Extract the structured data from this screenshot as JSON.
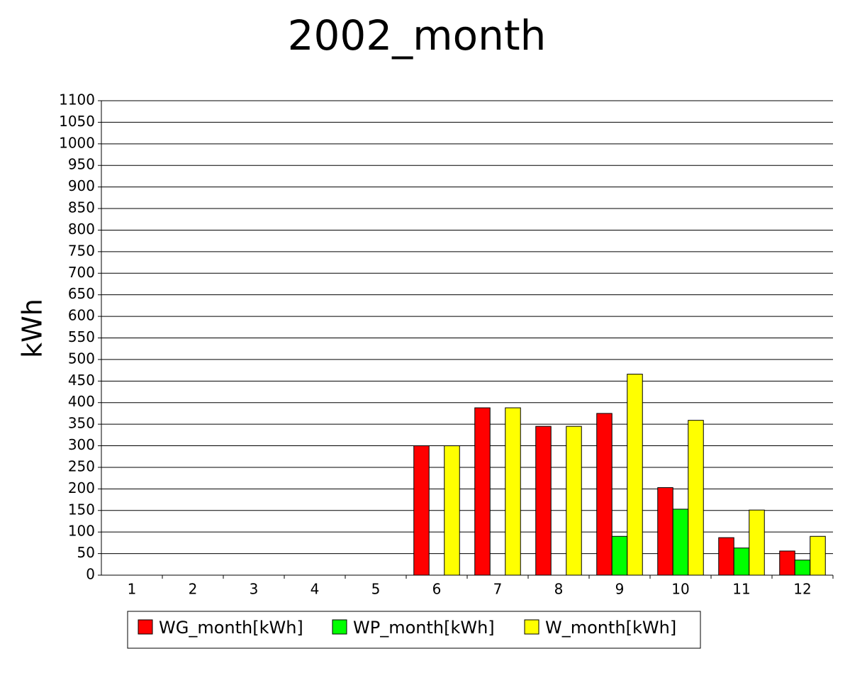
{
  "chart_data": {
    "type": "bar",
    "title": "2002_month",
    "y_label": "kWh",
    "categories": [
      "1",
      "2",
      "3",
      "4",
      "5",
      "6",
      "7",
      "8",
      "9",
      "10",
      "11",
      "12"
    ],
    "series": [
      {
        "name": "WG_month[kWh]",
        "color": "#ff0000",
        "values": [
          0,
          0,
          0,
          0,
          0,
          300,
          388,
          345,
          375,
          203,
          87,
          56
        ]
      },
      {
        "name": "WP_month[kWh]",
        "color": "#00ff00",
        "values": [
          0,
          0,
          0,
          0,
          0,
          0,
          0,
          0,
          90,
          153,
          63,
          35
        ]
      },
      {
        "name": "W_month[kWh]",
        "color": "#ffff00",
        "values": [
          0,
          0,
          0,
          0,
          0,
          300,
          388,
          345,
          466,
          359,
          151,
          90
        ]
      }
    ],
    "ylim": [
      0,
      1100
    ],
    "yticks": [
      0,
      50,
      100,
      150,
      200,
      250,
      300,
      350,
      400,
      450,
      500,
      550,
      600,
      650,
      700,
      750,
      800,
      850,
      900,
      950,
      1000,
      1050,
      1100
    ],
    "grid": true
  }
}
